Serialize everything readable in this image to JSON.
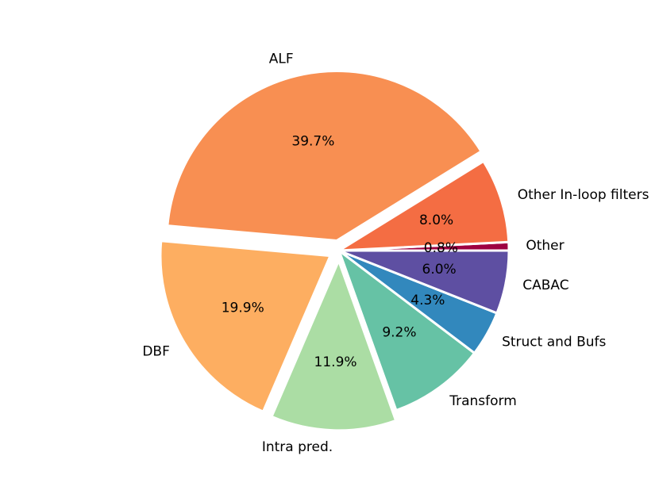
{
  "chart_data": {
    "type": "pie",
    "title": "",
    "start_angle_deg": 0,
    "direction": "counterclockwise",
    "slices": [
      {
        "label": "Other",
        "value": 0.8,
        "pct_label": "0.8%",
        "color": "#9e0142",
        "explode": 0.0
      },
      {
        "label": "Other In-loop filters",
        "value": 8.0,
        "pct_label": "8.0%",
        "color": "#f46d43",
        "explode": 0.0
      },
      {
        "label": "ALF",
        "value": 39.7,
        "pct_label": "39.7%",
        "color": "#f88f52",
        "explode": 0.06
      },
      {
        "label": "DBF",
        "value": 19.9,
        "pct_label": "19.9%",
        "color": "#fdae61",
        "explode": 0.06
      },
      {
        "label": "Intra pred.",
        "value": 11.9,
        "pct_label": "11.9%",
        "color": "#abdda4",
        "explode": 0.06
      },
      {
        "label": "Transform",
        "value": 9.2,
        "pct_label": "9.2%",
        "color": "#66c2a5",
        "explode": 0.0
      },
      {
        "label": "Struct and Bufs",
        "value": 4.3,
        "pct_label": "4.3%",
        "color": "#3288bd",
        "explode": 0.0
      },
      {
        "label": "CABAC",
        "value": 6.0,
        "pct_label": "6.0%",
        "color": "#5e4fa2",
        "explode": 0.0
      }
    ]
  }
}
